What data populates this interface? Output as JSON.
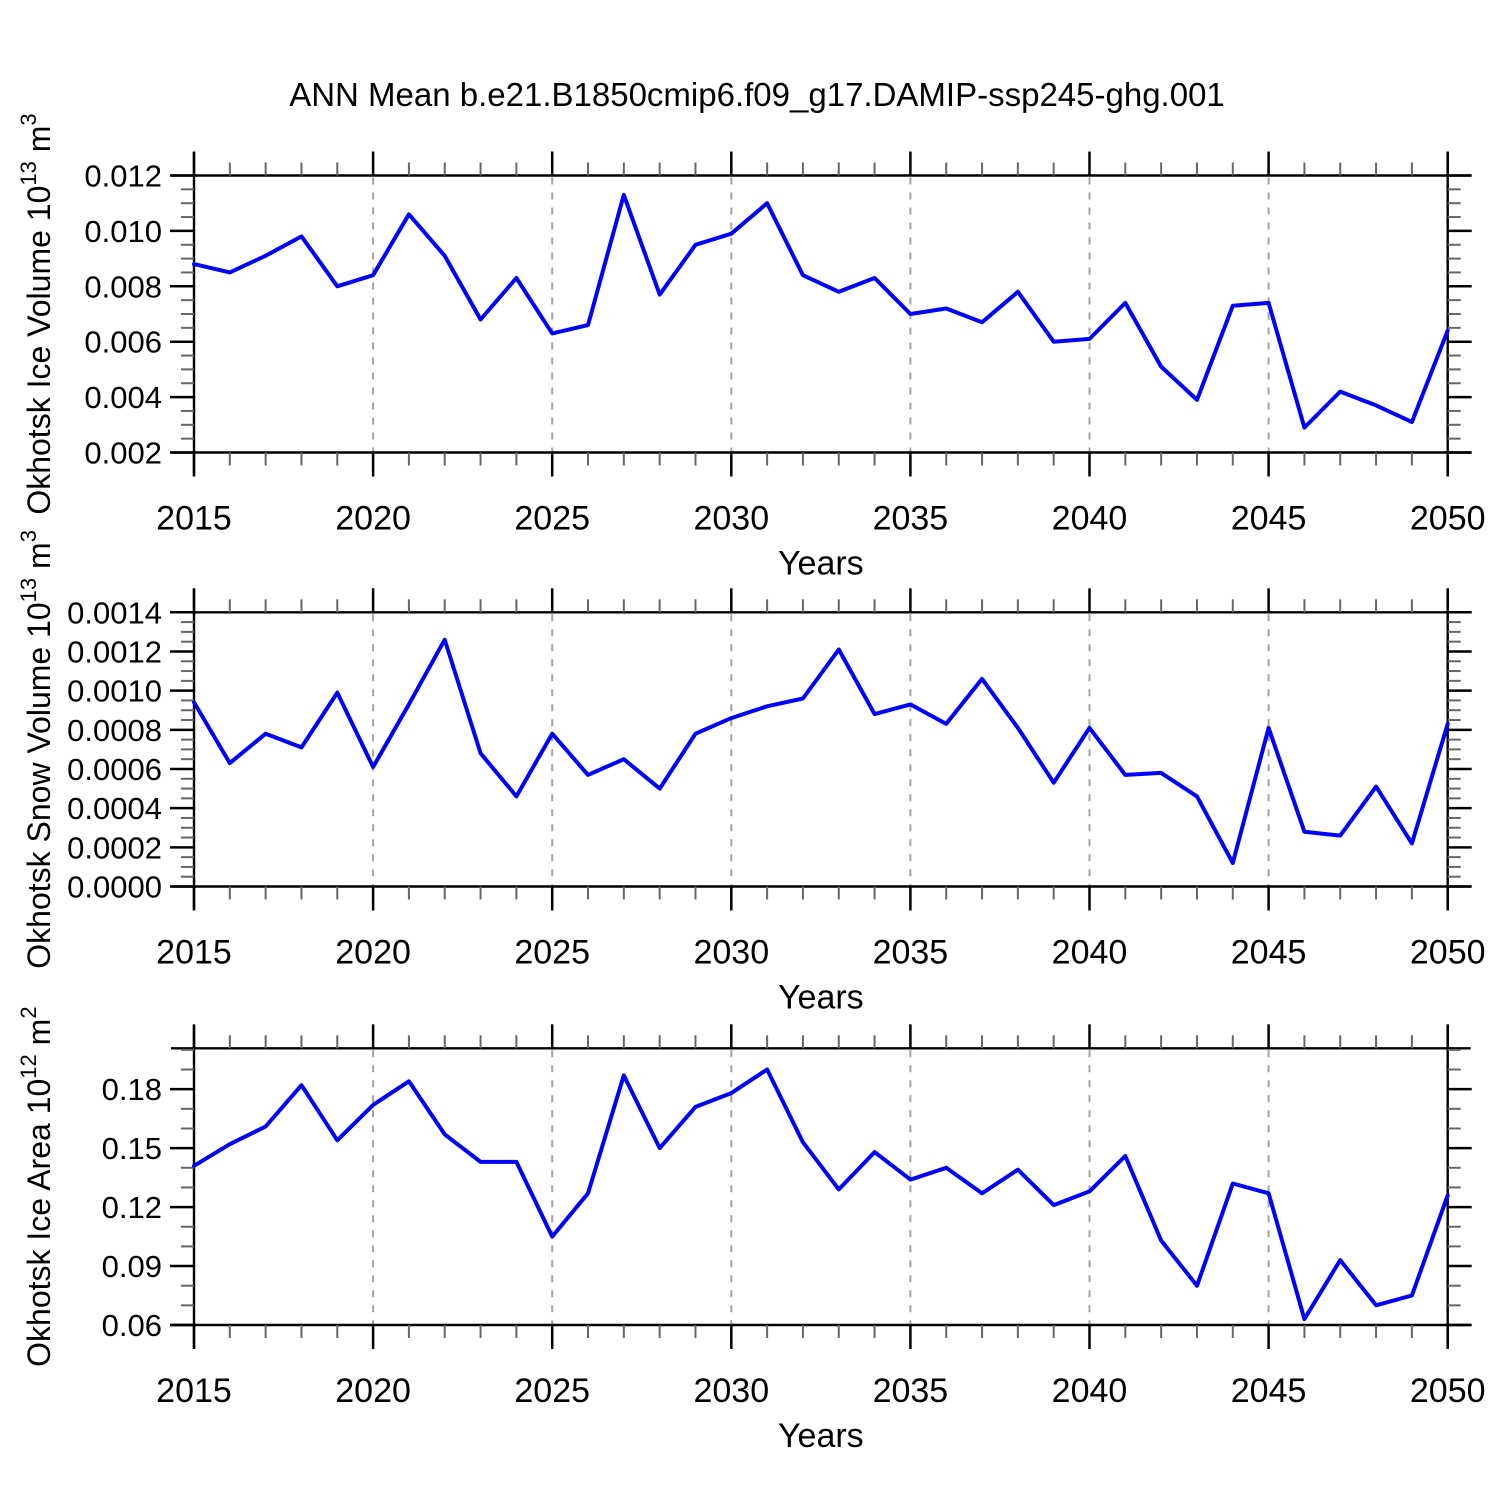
{
  "title": "ANN Mean b.e21.B1850cmip6.f09_g17.DAMIP-ssp245-ghg.001",
  "style": {
    "line_color": "#0000ff",
    "grid_color": "#a3a3a3",
    "frame_color": "#000000",
    "major_tick_color": "#000000",
    "minor_tick_color": "#666666",
    "text_color": "#000000",
    "background": "#ffffff"
  },
  "x_axis": {
    "label": "Years",
    "min": 2015,
    "max": 2050,
    "major_tick_step": 5,
    "minor_tick_step": 1,
    "tick_labels": [
      "2015",
      "2020",
      "2025",
      "2030",
      "2035",
      "2040",
      "2045",
      "2050"
    ],
    "gridline_years": [
      2020,
      2025,
      2030,
      2035,
      2040,
      2045
    ],
    "years": [
      2015,
      2016,
      2017,
      2018,
      2019,
      2020,
      2021,
      2022,
      2023,
      2024,
      2025,
      2026,
      2027,
      2028,
      2029,
      2030,
      2031,
      2032,
      2033,
      2034,
      2035,
      2036,
      2037,
      2038,
      2039,
      2040,
      2041,
      2042,
      2043,
      2044,
      2045,
      2046,
      2047,
      2048,
      2049,
      2050
    ]
  },
  "chart_data": [
    {
      "type": "line",
      "name": "ice-volume",
      "title": "",
      "xlabel": "Years",
      "ylabel": "Okhotsk Ice Volume 10^13 m^3",
      "ylabel_parts": [
        {
          "t": "Okhotsk Ice Volume 10"
        },
        {
          "t": "13",
          "sup": true
        },
        {
          "t": " m"
        },
        {
          "t": "3",
          "sup": true
        }
      ],
      "ylim": [
        0.002,
        0.012
      ],
      "ytick_labels": [
        "0.002",
        "0.004",
        "0.006",
        "0.008",
        "0.010",
        "0.012"
      ],
      "minor_step": 0.0005,
      "grid": "vertical-dashed",
      "legend": "none",
      "values": [
        0.0088,
        0.0085,
        0.0091,
        0.0098,
        0.008,
        0.0084,
        0.0106,
        0.0091,
        0.0068,
        0.0083,
        0.0063,
        0.0066,
        0.0113,
        0.0077,
        0.0095,
        0.0099,
        0.011,
        0.0084,
        0.0078,
        0.0083,
        0.007,
        0.0072,
        0.0067,
        0.0078,
        0.006,
        0.0061,
        0.0074,
        0.0051,
        0.0039,
        0.0073,
        0.0074,
        0.0029,
        0.0042,
        0.0037,
        0.0031,
        0.0064
      ]
    },
    {
      "type": "line",
      "name": "snow-volume",
      "title": "",
      "xlabel": "Years",
      "ylabel": "Okhotsk Snow Volume 10^13 m^3",
      "ylabel_parts": [
        {
          "t": "Okhotsk Snow Volume 10"
        },
        {
          "t": "13",
          "sup": true
        },
        {
          "t": " m"
        },
        {
          "t": "3",
          "sup": true
        }
      ],
      "ylim": [
        0.0,
        0.0014
      ],
      "ytick_labels": [
        "0.0000",
        "0.0002",
        "0.0004",
        "0.0006",
        "0.0008",
        "0.0010",
        "0.0012",
        "0.0014"
      ],
      "minor_step": 5e-05,
      "grid": "vertical-dashed",
      "legend": "none",
      "values": [
        0.00094,
        0.00063,
        0.00078,
        0.00071,
        0.00099,
        0.00061,
        0.00093,
        0.00126,
        0.00068,
        0.00046,
        0.00078,
        0.00057,
        0.00065,
        0.0005,
        0.00078,
        0.00086,
        0.00092,
        0.00096,
        0.00121,
        0.00088,
        0.00093,
        0.00083,
        0.00106,
        0.00081,
        0.00053,
        0.00081,
        0.00057,
        0.00058,
        0.00046,
        0.00012,
        0.00081,
        0.00028,
        0.00026,
        0.00051,
        0.00022,
        0.00083
      ]
    },
    {
      "type": "line",
      "name": "ice-area",
      "title": "",
      "xlabel": "Years",
      "ylabel": "Okhotsk Ice Area 10^12 m^2",
      "ylabel_parts": [
        {
          "t": "Okhotsk Ice Area 10"
        },
        {
          "t": "12",
          "sup": true
        },
        {
          "t": " m"
        },
        {
          "t": "2",
          "sup": true
        }
      ],
      "ylim": [
        0.06,
        0.2008
      ],
      "ytick_labels": [
        "0.06",
        "0.09",
        "0.12",
        "0.15",
        "0.18"
      ],
      "minor_step": 0.01,
      "grid": "vertical-dashed",
      "legend": "none",
      "values": [
        0.141,
        0.152,
        0.161,
        0.182,
        0.154,
        0.172,
        0.184,
        0.157,
        0.143,
        0.143,
        0.105,
        0.127,
        0.187,
        0.15,
        0.171,
        0.178,
        0.19,
        0.153,
        0.129,
        0.148,
        0.134,
        0.14,
        0.127,
        0.139,
        0.121,
        0.128,
        0.146,
        0.103,
        0.08,
        0.132,
        0.127,
        0.063,
        0.093,
        0.07,
        0.075,
        0.126
      ]
    }
  ]
}
